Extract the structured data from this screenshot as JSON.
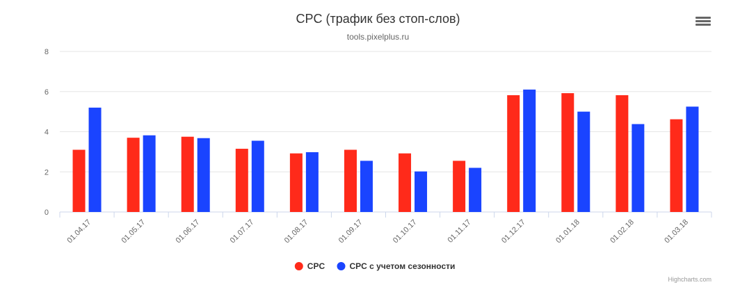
{
  "chart_data": {
    "type": "bar",
    "title": "CPC (трафик без стоп-слов)",
    "subtitle": "tools.pixelplus.ru",
    "categories": [
      "01.04.17",
      "01.05.17",
      "01.06.17",
      "01.07.17",
      "01.08.17",
      "01.09.17",
      "01.10.17",
      "01.11.17",
      "01.12.17",
      "01.01.18",
      "01.02.18",
      "01.03.18"
    ],
    "series": [
      {
        "name": "CPC",
        "color": "#ff2a1a",
        "values": [
          3.1,
          3.7,
          3.75,
          3.15,
          2.92,
          3.1,
          2.92,
          2.55,
          5.82,
          5.92,
          5.82,
          4.62
        ]
      },
      {
        "name": "CPC с учетом сезонности",
        "color": "#1a44ff",
        "values": [
          5.2,
          3.82,
          3.68,
          3.55,
          2.98,
          2.55,
          2.02,
          2.2,
          6.1,
          5.0,
          4.38,
          5.25
        ]
      }
    ],
    "ylim": [
      0,
      8
    ],
    "yticks": [
      0,
      2,
      4,
      6,
      8
    ],
    "grid": true,
    "legend_position": "bottom"
  },
  "credits": "Highcharts.com",
  "menu_icon": "hamburger-menu-icon"
}
